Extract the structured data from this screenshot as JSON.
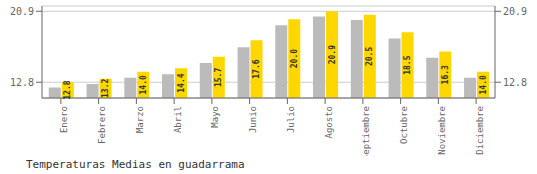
{
  "chart_data": {
    "type": "bar",
    "title": "Temperaturas Medias en guadarrama",
    "categories": [
      "Enero",
      "Febrero",
      "Marzo",
      "Abril",
      "Mayo",
      "Junio",
      "Julio",
      "Agosto",
      "Septiembre",
      "Octubre",
      "Noviembre",
      "Diciembre"
    ],
    "series": [
      {
        "color": "#BBBBBB",
        "values": [
          12.2,
          12.6,
          13.3,
          13.7,
          15.0,
          16.8,
          19.3,
          20.3,
          19.9,
          17.8,
          15.6,
          13.3
        ]
      },
      {
        "color": "#FFD700",
        "values": [
          12.8,
          13.2,
          14.0,
          14.4,
          15.7,
          17.6,
          20.0,
          20.9,
          20.5,
          18.5,
          16.3,
          14.0
        ],
        "data_labels": true,
        "value_labels": [
          "12.8",
          "13.2",
          "14.0",
          "14.4",
          "15.7",
          "17.6",
          "20.0",
          "20.9",
          "20.5",
          "18.5",
          "16.3",
          "14.0"
        ]
      }
    ],
    "ylim": [
      11.0,
      21.5
    ],
    "yticks": [
      12.8,
      20.9
    ],
    "y2lim": [
      11.0,
      21.5
    ],
    "y2ticks": [
      12.8,
      20.9
    ],
    "grid": true
  }
}
